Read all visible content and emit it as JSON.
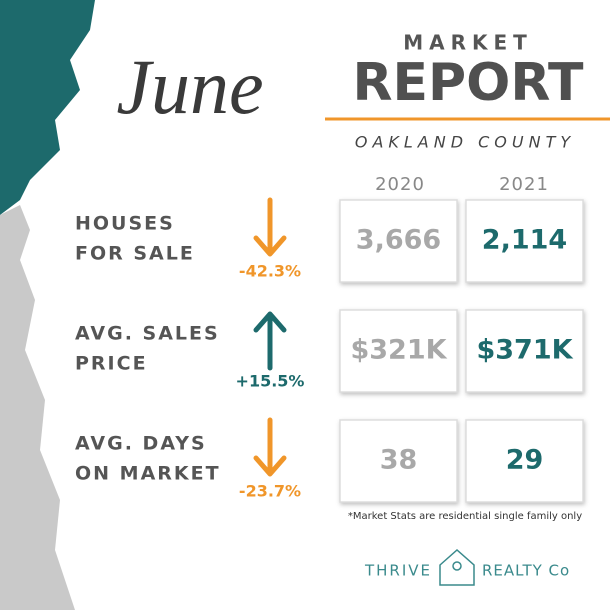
{
  "header": {
    "month": "June",
    "title_top": "MARKET",
    "title_main": "REPORT",
    "subtitle": "OAKLAND COUNTY"
  },
  "years": [
    "2020",
    "2021"
  ],
  "rows": [
    {
      "label": [
        "HOUSES",
        "FOR SALE"
      ],
      "change": "-42.3%",
      "values": [
        "3,666",
        "2,114"
      ]
    },
    {
      "label": [
        "AVG. SALES",
        "PRICE"
      ],
      "change": "+15.5%",
      "values": [
        "$321K",
        "$371K"
      ]
    },
    {
      "label": [
        "AVG. DAYS",
        "ON MARKET"
      ],
      "change": "-23.7%",
      "values": [
        "38",
        "29"
      ]
    }
  ],
  "footnote": "*Market Stats are residential single family only",
  "logo": {
    "left": "THRIVE",
    "right": "REALTY Co"
  }
}
